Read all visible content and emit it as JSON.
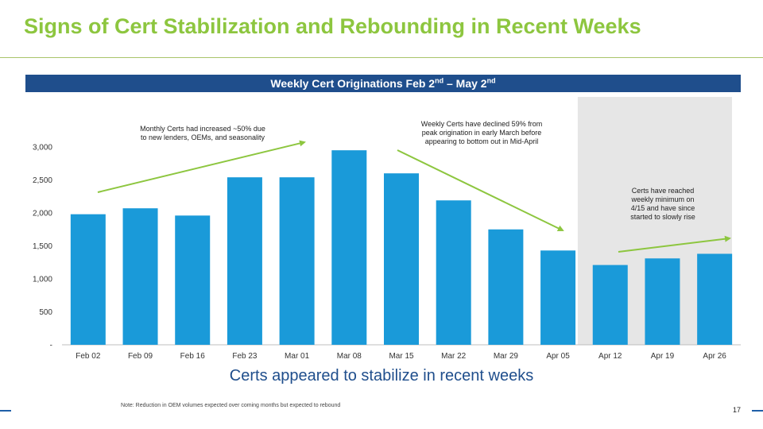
{
  "slide": {
    "title": "Signs of Cert Stabilization and Rebounding in Recent Weeks",
    "banner": {
      "prefix": "Weekly Cert Originations Feb 2",
      "sup1": "nd",
      "middle": " – May 2",
      "sup2": "nd"
    },
    "subtitle": "Certs appeared to stabilize in recent weeks",
    "note": "Note: Reduction in OEM volumes expected over coming months but expected to rebound",
    "page_number": "17"
  },
  "colors": {
    "title": "#8dc63f",
    "banner": "#1f4e8c",
    "bar": "#1a9ad9",
    "arrow": "#8dc63f",
    "highlight": "#e6e6e6"
  },
  "chart_data": {
    "type": "bar",
    "categories": [
      "Feb 02",
      "Feb 09",
      "Feb 16",
      "Feb 23",
      "Mar 01",
      "Mar 08",
      "Mar 15",
      "Mar 22",
      "Mar 29",
      "Apr 05",
      "Apr 12",
      "Apr 19",
      "Apr 26"
    ],
    "values": [
      1980,
      2070,
      1960,
      2540,
      2540,
      2950,
      2600,
      2190,
      1750,
      1430,
      1210,
      1310,
      1380
    ],
    "ylim": [
      0,
      3000
    ],
    "yticks": [
      0,
      500,
      1000,
      1500,
      2000,
      2500,
      3000
    ],
    "ytick_labels": [
      "-",
      "500",
      "1,000",
      "1,500",
      "2,000",
      "2,500",
      "3,000"
    ],
    "grid": false,
    "highlight_categories": [
      "Apr 12",
      "Apr 19",
      "Apr 26"
    ],
    "annotations": [
      {
        "lines": [
          "Monthly Certs had increased ~50% due",
          "to new lenders, OEMs, and seasonality"
        ],
        "trend": "up",
        "from": "Feb 02",
        "to": "Mar 01"
      },
      {
        "lines": [
          "Weekly Certs have declined 59% from",
          "peak origination in early March before",
          "appearing to bottom out in Mid-April"
        ],
        "trend": "down",
        "from": "Mar 08",
        "to": "Apr 05"
      },
      {
        "lines": [
          "Certs have reached",
          "weekly minimum on",
          "4/15 and have since",
          "started to slowly rise"
        ],
        "trend": "up",
        "from": "Apr 12",
        "to": "Apr 26"
      }
    ]
  }
}
